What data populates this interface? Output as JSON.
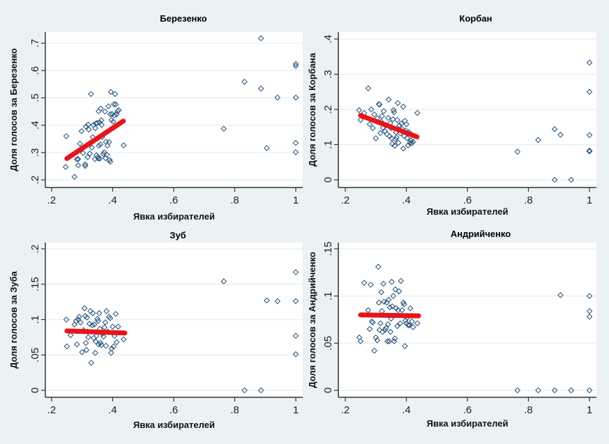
{
  "chart_data": [
    {
      "type": "scatter",
      "title": "Березенко",
      "xlabel": "Явка избирателей",
      "ylabel": "Доля голосов за Березенко",
      "xlim": [
        0.2,
        1.0
      ],
      "ylim": [
        0.2,
        0.7
      ],
      "xticks": [
        0.2,
        0.4,
        0.6,
        0.8,
        1.0
      ],
      "xtick_labels": [
        ".2",
        ".4",
        ".6",
        ".8",
        "1"
      ],
      "yticks": [
        0.2,
        0.3,
        0.4,
        0.5,
        0.6,
        0.7
      ],
      "ytick_labels": [
        ".2",
        ".3",
        ".4",
        ".5",
        ".6",
        ".7"
      ],
      "grid": true,
      "fit_line": {
        "x": [
          0.25,
          0.435
        ],
        "y": [
          0.278,
          0.415
        ],
        "color": "#e8141a"
      },
      "marker_color": "#1f4e79",
      "points": [
        [
          0.248,
          0.36
        ],
        [
          0.246,
          0.247
        ],
        [
          0.275,
          0.211
        ],
        [
          0.287,
          0.276
        ],
        [
          0.283,
          0.275
        ],
        [
          0.287,
          0.253
        ],
        [
          0.293,
          0.332
        ],
        [
          0.298,
          0.378
        ],
        [
          0.303,
          0.298
        ],
        [
          0.31,
          0.257
        ],
        [
          0.31,
          0.251
        ],
        [
          0.312,
          0.395
        ],
        [
          0.318,
          0.283
        ],
        [
          0.32,
          0.402
        ],
        [
          0.322,
          0.384
        ],
        [
          0.325,
          0.296
        ],
        [
          0.329,
          0.514
        ],
        [
          0.332,
          0.318
        ],
        [
          0.335,
          0.356
        ],
        [
          0.337,
          0.401
        ],
        [
          0.342,
          0.276
        ],
        [
          0.343,
          0.389
        ],
        [
          0.345,
          0.406
        ],
        [
          0.347,
          0.29
        ],
        [
          0.349,
          0.408
        ],
        [
          0.352,
          0.284
        ],
        [
          0.353,
          0.278
        ],
        [
          0.354,
          0.451
        ],
        [
          0.355,
          0.325
        ],
        [
          0.357,
          0.41
        ],
        [
          0.358,
          0.278
        ],
        [
          0.36,
          0.33
        ],
        [
          0.361,
          0.461
        ],
        [
          0.363,
          0.418
        ],
        [
          0.364,
          0.401
        ],
        [
          0.366,
          0.357
        ],
        [
          0.37,
          0.294
        ],
        [
          0.372,
          0.301
        ],
        [
          0.375,
          0.45
        ],
        [
          0.377,
          0.279
        ],
        [
          0.378,
          0.339
        ],
        [
          0.381,
          0.292
        ],
        [
          0.383,
          0.325
        ],
        [
          0.386,
          0.469
        ],
        [
          0.388,
          0.338
        ],
        [
          0.39,
          0.273
        ],
        [
          0.392,
          0.44
        ],
        [
          0.392,
          0.266
        ],
        [
          0.394,
          0.522
        ],
        [
          0.396,
          0.419
        ],
        [
          0.398,
          0.441
        ],
        [
          0.402,
          0.413
        ],
        [
          0.404,
          0.477
        ],
        [
          0.406,
          0.436
        ],
        [
          0.408,
          0.514
        ],
        [
          0.41,
          0.476
        ],
        [
          0.413,
          0.44
        ],
        [
          0.416,
          0.451
        ],
        [
          0.42,
          0.455
        ],
        [
          0.436,
          0.326
        ],
        [
          0.764,
          0.387
        ],
        [
          0.832,
          0.559
        ],
        [
          0.886,
          0.718
        ],
        [
          0.886,
          0.534
        ],
        [
          0.905,
          0.316
        ],
        [
          0.94,
          0.501
        ],
        [
          1.0,
          0.624
        ],
        [
          1.0,
          0.617
        ],
        [
          1.0,
          0.501
        ],
        [
          1.0,
          0.335
        ],
        [
          1.0,
          0.301
        ]
      ]
    },
    {
      "type": "scatter",
      "title": "Корбан",
      "xlabel": "Явка избирателей",
      "ylabel": "Доля голосов за Корбана",
      "xlim": [
        0.2,
        1.0
      ],
      "ylim": [
        0.0,
        0.4
      ],
      "xticks": [
        0.2,
        0.4,
        0.6,
        0.8,
        1.0
      ],
      "xtick_labels": [
        ".2",
        ".4",
        ".6",
        ".8",
        "1"
      ],
      "yticks": [
        0.0,
        0.1,
        0.2,
        0.3,
        0.4
      ],
      "ytick_labels": [
        "0",
        ".1",
        ".2",
        ".3",
        ".4"
      ],
      "grid": true,
      "fit_line": {
        "x": [
          0.25,
          0.435
        ],
        "y": [
          0.183,
          0.122
        ],
        "color": "#e8141a"
      },
      "marker_color": "#1f4e79",
      "points": [
        [
          0.245,
          0.198
        ],
        [
          0.25,
          0.17
        ],
        [
          0.262,
          0.19
        ],
        [
          0.275,
          0.26
        ],
        [
          0.28,
          0.158
        ],
        [
          0.285,
          0.2
        ],
        [
          0.29,
          0.147
        ],
        [
          0.295,
          0.186
        ],
        [
          0.3,
          0.118
        ],
        [
          0.305,
          0.175
        ],
        [
          0.31,
          0.215
        ],
        [
          0.312,
          0.214
        ],
        [
          0.315,
          0.133
        ],
        [
          0.318,
          0.165
        ],
        [
          0.32,
          0.181
        ],
        [
          0.323,
          0.148
        ],
        [
          0.326,
          0.195
        ],
        [
          0.33,
          0.138
        ],
        [
          0.333,
          0.155
        ],
        [
          0.336,
          0.13
        ],
        [
          0.34,
          0.176
        ],
        [
          0.342,
          0.228
        ],
        [
          0.345,
          0.124
        ],
        [
          0.347,
          0.161
        ],
        [
          0.35,
          0.147
        ],
        [
          0.352,
          0.118
        ],
        [
          0.354,
          0.102
        ],
        [
          0.356,
          0.172
        ],
        [
          0.358,
          0.198
        ],
        [
          0.36,
          0.192
        ],
        [
          0.362,
          0.097
        ],
        [
          0.364,
          0.115
        ],
        [
          0.366,
          0.135
        ],
        [
          0.368,
          0.12
        ],
        [
          0.37,
          0.17
        ],
        [
          0.372,
          0.218
        ],
        [
          0.374,
          0.105
        ],
        [
          0.377,
          0.155
        ],
        [
          0.38,
          0.132
        ],
        [
          0.383,
          0.16
        ],
        [
          0.386,
          0.145
        ],
        [
          0.39,
          0.208
        ],
        [
          0.39,
          0.089
        ],
        [
          0.393,
          0.125
        ],
        [
          0.395,
          0.168
        ],
        [
          0.398,
          0.14
        ],
        [
          0.4,
          0.158
        ],
        [
          0.403,
          0.118
        ],
        [
          0.406,
          0.098
        ],
        [
          0.409,
          0.135
        ],
        [
          0.412,
          0.105
        ],
        [
          0.415,
          0.112
        ],
        [
          0.418,
          0.104
        ],
        [
          0.422,
          0.108
        ],
        [
          0.436,
          0.19
        ],
        [
          0.764,
          0.08
        ],
        [
          0.832,
          0.113
        ],
        [
          0.886,
          0.144
        ],
        [
          0.886,
          0.0
        ],
        [
          0.905,
          0.128
        ],
        [
          0.94,
          0.0
        ],
        [
          1.0,
          0.333
        ],
        [
          1.0,
          0.25
        ],
        [
          1.0,
          0.127
        ],
        [
          1.0,
          0.083
        ],
        [
          1.0,
          0.081
        ]
      ]
    },
    {
      "type": "scatter",
      "title": "Зуб",
      "xlabel": "Явка избирателей",
      "ylabel": "Доля голосов за Зуба",
      "xlim": [
        0.2,
        1.0
      ],
      "ylim": [
        0.0,
        0.2
      ],
      "xticks": [
        0.2,
        0.4,
        0.6,
        0.8,
        1.0
      ],
      "xtick_labels": [
        ".2",
        ".4",
        ".6",
        ".8",
        "1"
      ],
      "yticks": [
        0.0,
        0.05,
        0.1,
        0.15,
        0.2
      ],
      "ytick_labels": [
        "0",
        ".05",
        ".1",
        ".15",
        ".2"
      ],
      "grid": true,
      "fit_line": {
        "x": [
          0.25,
          0.44
        ],
        "y": [
          0.084,
          0.081
        ],
        "color": "#e8141a"
      },
      "marker_color": "#1f4e79",
      "points": [
        [
          0.248,
          0.1
        ],
        [
          0.25,
          0.062
        ],
        [
          0.262,
          0.078
        ],
        [
          0.275,
          0.093
        ],
        [
          0.28,
          0.098
        ],
        [
          0.283,
          0.065
        ],
        [
          0.287,
          0.1
        ],
        [
          0.29,
          0.104
        ],
        [
          0.295,
          0.096
        ],
        [
          0.3,
          0.054
        ],
        [
          0.305,
          0.085
        ],
        [
          0.308,
          0.116
        ],
        [
          0.31,
          0.105
        ],
        [
          0.312,
          0.067
        ],
        [
          0.314,
          0.057
        ],
        [
          0.316,
          0.103
        ],
        [
          0.318,
          0.083
        ],
        [
          0.32,
          0.075
        ],
        [
          0.324,
          0.094
        ],
        [
          0.327,
          0.112
        ],
        [
          0.33,
          0.039
        ],
        [
          0.333,
          0.092
        ],
        [
          0.335,
          0.109
        ],
        [
          0.338,
          0.074
        ],
        [
          0.34,
          0.093
        ],
        [
          0.343,
          0.053
        ],
        [
          0.345,
          0.069
        ],
        [
          0.347,
          0.077
        ],
        [
          0.35,
          0.101
        ],
        [
          0.352,
          0.098
        ],
        [
          0.354,
          0.065
        ],
        [
          0.356,
          0.109
        ],
        [
          0.358,
          0.087
        ],
        [
          0.36,
          0.067
        ],
        [
          0.363,
          0.064
        ],
        [
          0.366,
          0.08
        ],
        [
          0.37,
          0.076
        ],
        [
          0.373,
          0.089
        ],
        [
          0.376,
          0.096
        ],
        [
          0.378,
          0.063
        ],
        [
          0.38,
          0.112
        ],
        [
          0.384,
          0.083
        ],
        [
          0.388,
          0.104
        ],
        [
          0.392,
          0.102
        ],
        [
          0.395,
          0.053
        ],
        [
          0.397,
          0.059
        ],
        [
          0.4,
          0.09
        ],
        [
          0.403,
          0.062
        ],
        [
          0.406,
          0.077
        ],
        [
          0.41,
          0.108
        ],
        [
          0.413,
          0.068
        ],
        [
          0.418,
          0.09
        ],
        [
          0.436,
          0.072
        ],
        [
          0.764,
          0.154
        ],
        [
          0.832,
          0.0
        ],
        [
          0.886,
          0.0
        ],
        [
          0.905,
          0.127
        ],
        [
          0.94,
          0.126
        ],
        [
          1.0,
          0.167
        ],
        [
          1.0,
          0.126
        ],
        [
          1.0,
          0.077
        ],
        [
          1.0,
          0.051
        ]
      ]
    },
    {
      "type": "scatter",
      "title": "Андрийченко",
      "xlabel": "Явка избирателей",
      "ylabel": "Доля голосов за Андрийченко",
      "xlim": [
        0.2,
        1.0
      ],
      "ylim": [
        0.0,
        0.15
      ],
      "xticks": [
        0.2,
        0.4,
        0.6,
        0.8,
        1.0
      ],
      "xtick_labels": [
        ".2",
        ".4",
        ".6",
        ".8",
        "1"
      ],
      "yticks": [
        0.0,
        0.05,
        0.1,
        0.15
      ],
      "ytick_labels": [
        "0",
        ".05",
        ".1",
        ".15"
      ],
      "grid": true,
      "fit_line": {
        "x": [
          0.25,
          0.44
        ],
        "y": [
          0.08,
          0.079
        ],
        "color": "#e8141a"
      },
      "marker_color": "#1f4e79",
      "points": [
        [
          0.246,
          0.056
        ],
        [
          0.25,
          0.052
        ],
        [
          0.262,
          0.114
        ],
        [
          0.275,
          0.085
        ],
        [
          0.28,
          0.065
        ],
        [
          0.283,
          0.112
        ],
        [
          0.287,
          0.073
        ],
        [
          0.29,
          0.072
        ],
        [
          0.295,
          0.042
        ],
        [
          0.3,
          0.056
        ],
        [
          0.305,
          0.053
        ],
        [
          0.308,
          0.131
        ],
        [
          0.31,
          0.093
        ],
        [
          0.312,
          0.064
        ],
        [
          0.315,
          0.071
        ],
        [
          0.318,
          0.104
        ],
        [
          0.32,
          0.084
        ],
        [
          0.322,
          0.062
        ],
        [
          0.325,
          0.113
        ],
        [
          0.327,
          0.094
        ],
        [
          0.33,
          0.064
        ],
        [
          0.333,
          0.066
        ],
        [
          0.336,
          0.093
        ],
        [
          0.338,
          0.052
        ],
        [
          0.34,
          0.07
        ],
        [
          0.342,
          0.096
        ],
        [
          0.344,
          0.052
        ],
        [
          0.346,
          0.088
        ],
        [
          0.348,
          0.062
        ],
        [
          0.35,
          0.076
        ],
        [
          0.352,
          0.115
        ],
        [
          0.354,
          0.089
        ],
        [
          0.357,
          0.1
        ],
        [
          0.36,
          0.052
        ],
        [
          0.362,
          0.055
        ],
        [
          0.364,
          0.107
        ],
        [
          0.366,
          0.087
        ],
        [
          0.37,
          0.068
        ],
        [
          0.373,
          0.085
        ],
        [
          0.376,
          0.105
        ],
        [
          0.38,
          0.071
        ],
        [
          0.382,
          0.116
        ],
        [
          0.386,
          0.085
        ],
        [
          0.39,
          0.093
        ],
        [
          0.393,
          0.091
        ],
        [
          0.395,
          0.047
        ],
        [
          0.397,
          0.074
        ],
        [
          0.4,
          0.071
        ],
        [
          0.403,
          0.077
        ],
        [
          0.406,
          0.069
        ],
        [
          0.41,
          0.069
        ],
        [
          0.413,
          0.087
        ],
        [
          0.418,
          0.073
        ],
        [
          0.422,
          0.067
        ],
        [
          0.436,
          0.071
        ],
        [
          0.764,
          0.0
        ],
        [
          0.832,
          0.0
        ],
        [
          0.886,
          0.0
        ],
        [
          0.905,
          0.101
        ],
        [
          0.94,
          0.0
        ],
        [
          1.0,
          0.1
        ],
        [
          1.0,
          0.084
        ],
        [
          1.0,
          0.078
        ],
        [
          1.0,
          0.0
        ]
      ]
    }
  ]
}
